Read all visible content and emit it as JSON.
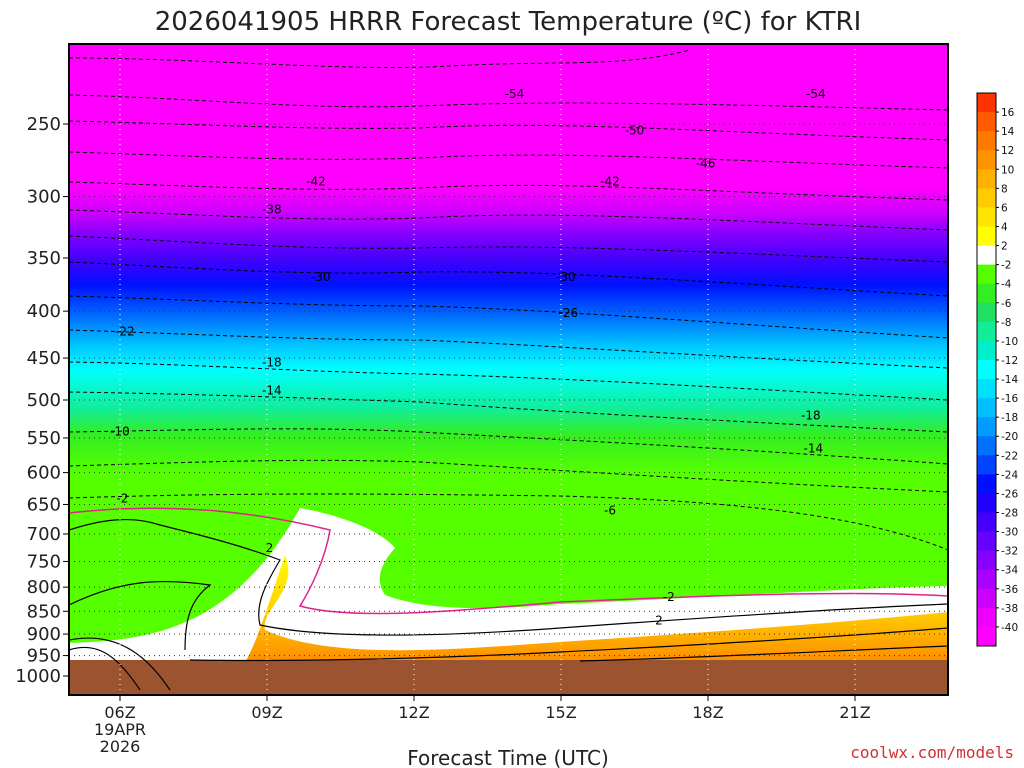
{
  "title": "2026041905 HRRR Forecast Temperature (ºC) for KTRI",
  "xlabel": "Forecast Time (UTC)",
  "credit": "coolwx.com/models",
  "colors": {
    "credit": "#d42f2f",
    "ground": "#9c5430",
    "freezing_line": "#e0248c",
    "contour": "#000000",
    "frame": "#000000"
  },
  "chart_data": {
    "type": "heatmap",
    "title": "2026041905 HRRR Forecast Temperature (ºC) for KTRI",
    "xlabel": "Forecast Time (UTC)",
    "ylabel": "",
    "x_ticks": [
      {
        "label": "06Z",
        "sub": [
          "19APR",
          "2026"
        ]
      },
      {
        "label": "09Z",
        "sub": []
      },
      {
        "label": "12Z",
        "sub": []
      },
      {
        "label": "15Z",
        "sub": []
      },
      {
        "label": "18Z",
        "sub": []
      },
      {
        "label": "21Z",
        "sub": []
      }
    ],
    "y_ticks": [
      250,
      300,
      350,
      400,
      450,
      500,
      550,
      600,
      650,
      700,
      750,
      800,
      850,
      900,
      950,
      1000
    ],
    "y_axis": "pressure (hPa), inverted",
    "grid": true,
    "colorbar": {
      "levels": [
        16,
        14,
        12,
        10,
        8,
        6,
        4,
        2,
        -2,
        -4,
        -6,
        -8,
        -10,
        -12,
        -14,
        -16,
        -18,
        -20,
        -22,
        -24,
        -26,
        -28,
        -30,
        -32,
        -34,
        -36,
        -38,
        -40
      ],
      "colors": [
        "#ff3300",
        "#ff5a00",
        "#ff7800",
        "#ff9400",
        "#ffb000",
        "#ffcc00",
        "#ffe400",
        "#ffff00",
        "#ffffff",
        "#55ff00",
        "#33ee22",
        "#22e066",
        "#11ee99",
        "#00eecc",
        "#00ffff",
        "#00e0ff",
        "#00c0ff",
        "#009cff",
        "#0070ff",
        "#0044ff",
        "#0010ff",
        "#2200ff",
        "#4400ff",
        "#6600ff",
        "#8800ff",
        "#aa00ff",
        "#cc00ff",
        "#ee00ff",
        "#ff00ff"
      ],
      "placement": "right"
    },
    "contour_labels": [
      {
        "text": "-54",
        "t": 14.05,
        "p": 232
      },
      {
        "text": "-54",
        "t": 20.2,
        "p": 232
      },
      {
        "text": "-50",
        "t": 16.5,
        "p": 254
      },
      {
        "text": "-46",
        "t": 17.95,
        "p": 276
      },
      {
        "text": "-42",
        "t": 10.0,
        "p": 289
      },
      {
        "text": "-42",
        "t": 16.0,
        "p": 289
      },
      {
        "text": "-38",
        "t": 9.1,
        "p": 310
      },
      {
        "text": "-30",
        "t": 10.1,
        "p": 367
      },
      {
        "text": "-30",
        "t": 15.1,
        "p": 367
      },
      {
        "text": "-26",
        "t": 15.15,
        "p": 402
      },
      {
        "text": "-22",
        "t": 6.1,
        "p": 421
      },
      {
        "text": "-18",
        "t": 9.1,
        "p": 455
      },
      {
        "text": "-18",
        "t": 20.1,
        "p": 520
      },
      {
        "text": "-14",
        "t": 9.1,
        "p": 488
      },
      {
        "text": "-14",
        "t": 20.15,
        "p": 565
      },
      {
        "text": "-10",
        "t": 6.0,
        "p": 541
      },
      {
        "text": "-6",
        "t": 16.0,
        "p": 660
      },
      {
        "text": "-2",
        "t": 6.05,
        "p": 640
      },
      {
        "text": "-2",
        "t": 17.2,
        "p": 820
      },
      {
        "text": "2",
        "t": 9.05,
        "p": 725
      },
      {
        "text": "2",
        "t": 17.0,
        "p": 870
      }
    ]
  }
}
